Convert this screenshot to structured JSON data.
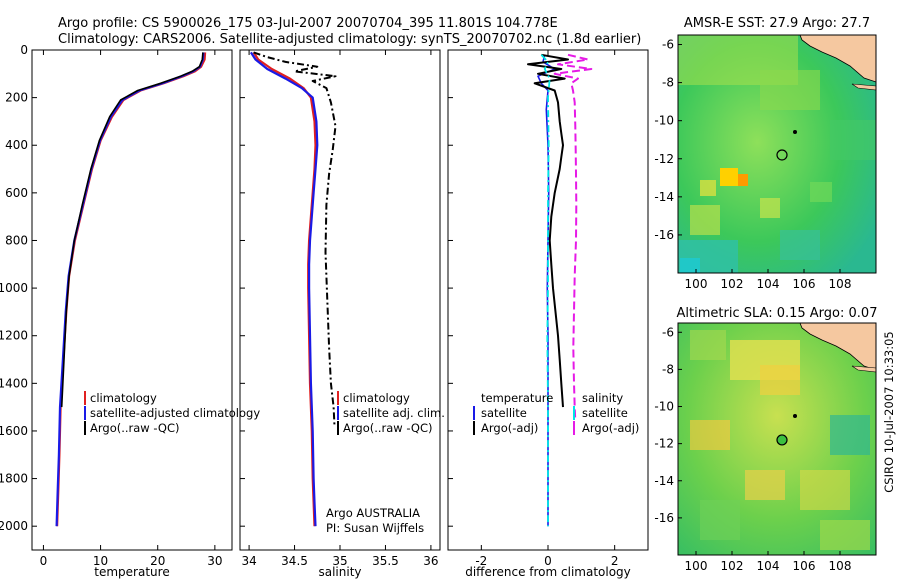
{
  "header": {
    "line1": "Argo profile: CS 5900026_175 03-Jul-2007 20070704_395 11.801S 104.778E",
    "line2": "Climatology: CARS2006. Satellite-adjusted climatology: synTS_20070702.nc (1.8d earlier)"
  },
  "footer": {
    "argo_label": "Argo AUSTRALIA",
    "pi_label": "PI: Susan Wijffels",
    "credit": "CSIRO 10-Jul-2007 10:33:05"
  },
  "colors": {
    "climatology": "#e02020",
    "satellite": "#1a1ae6",
    "argo": "#000000",
    "salinity_sat": "#00e5e5",
    "salinity_argo": "#e61ae6",
    "map_land": "#f5c8a0"
  },
  "chart_data": [
    {
      "id": "temperature",
      "type": "line",
      "xlabel": "temperature",
      "ylabel": "",
      "xlim": [
        -2,
        33
      ],
      "ylim": [
        2100,
        0
      ],
      "xticks": [
        0,
        10,
        20,
        30
      ],
      "yticks": [
        0,
        200,
        400,
        600,
        800,
        1000,
        1200,
        1400,
        1600,
        1800,
        2000
      ],
      "legend": [
        "climatology",
        "satellite-adjusted climatology",
        "Argo(..raw -QC)"
      ],
      "series": [
        {
          "name": "climatology",
          "color": "climatology",
          "dash": "",
          "width": 2.2,
          "x": [
            28.3,
            28.2,
            27.6,
            26.5,
            24.5,
            21,
            17,
            14,
            12,
            10,
            8.5,
            7,
            5.5,
            4.5,
            4,
            3.5,
            3,
            2.8,
            2.6,
            2.4
          ],
          "y": [
            10,
            40,
            70,
            90,
            110,
            140,
            170,
            210,
            280,
            380,
            500,
            650,
            800,
            950,
            1100,
            1300,
            1500,
            1700,
            1850,
            2000
          ]
        },
        {
          "name": "satellite-adjusted climatology",
          "color": "satellite",
          "dash": "",
          "width": 2.2,
          "x": [
            28.0,
            27.9,
            27.4,
            26.2,
            24.2,
            20.8,
            16.8,
            13.8,
            11.8,
            9.9,
            8.4,
            6.9,
            5.4,
            4.4,
            3.9,
            3.4,
            2.9,
            2.7,
            2.5,
            2.3
          ],
          "y": [
            10,
            40,
            70,
            90,
            110,
            140,
            170,
            210,
            280,
            380,
            500,
            650,
            800,
            950,
            1100,
            1300,
            1500,
            1700,
            1850,
            2000
          ]
        },
        {
          "name": "Argo(..raw -QC)",
          "color": "argo",
          "dash": "",
          "width": 1.6,
          "x": [
            27.9,
            27.8,
            27.3,
            26.0,
            24.0,
            20.5,
            16.5,
            13.5,
            11.6,
            9.8,
            8.3,
            6.8,
            5.4,
            4.5,
            4.0,
            3.6,
            3.2
          ],
          "y": [
            10,
            40,
            70,
            90,
            110,
            140,
            170,
            210,
            280,
            380,
            500,
            650,
            800,
            950,
            1100,
            1300,
            1500
          ]
        }
      ]
    },
    {
      "id": "salinity",
      "type": "line",
      "xlabel": "salinity",
      "ylabel": "",
      "xlim": [
        33.9,
        36.1
      ],
      "ylim": [
        2100,
        0
      ],
      "xticks": [
        34,
        34.5,
        35,
        35.5,
        36
      ],
      "xticklabels": [
        "34",
        "34.5",
        "35",
        "35.5",
        "36"
      ],
      "legend": [
        "climatology",
        "satellite adj. clim.",
        "Argo(..raw -QC)"
      ],
      "series": [
        {
          "name": "climatology",
          "color": "climatology",
          "dash": "",
          "width": 2.2,
          "x": [
            34.05,
            34.1,
            34.25,
            34.45,
            34.6,
            34.68,
            34.72,
            34.73,
            34.72,
            34.7,
            34.68,
            34.66,
            34.65,
            34.65,
            34.66,
            34.67,
            34.69,
            34.7,
            34.71,
            34.72
          ],
          "y": [
            10,
            40,
            80,
            120,
            160,
            200,
            300,
            400,
            500,
            600,
            700,
            800,
            900,
            1000,
            1200,
            1400,
            1600,
            1800,
            1900,
            2000
          ]
        },
        {
          "name": "satellite adj. clim.",
          "color": "satellite",
          "dash": "",
          "width": 2.2,
          "x": [
            34.02,
            34.07,
            34.2,
            34.4,
            34.58,
            34.7,
            34.74,
            34.75,
            34.73,
            34.71,
            34.69,
            34.67,
            34.66,
            34.66,
            34.67,
            34.68,
            34.7,
            34.71,
            34.72,
            34.73
          ],
          "y": [
            10,
            40,
            80,
            120,
            160,
            200,
            300,
            400,
            500,
            600,
            700,
            800,
            900,
            1000,
            1200,
            1400,
            1600,
            1800,
            1900,
            2000
          ]
        },
        {
          "name": "Argo(..raw -QC)",
          "color": "argo",
          "dash": "7,3,2,3",
          "width": 2,
          "x": [
            34.05,
            34.2,
            34.4,
            34.75,
            34.5,
            34.95,
            34.7,
            34.85,
            34.9,
            34.95,
            34.92,
            34.88,
            34.85,
            34.84,
            34.86,
            34.88,
            34.9,
            34.93,
            34.94
          ],
          "y": [
            10,
            30,
            50,
            70,
            90,
            110,
            130,
            160,
            220,
            320,
            420,
            520,
            650,
            850,
            1050,
            1250,
            1400,
            1500,
            1580
          ]
        }
      ]
    },
    {
      "id": "difference",
      "type": "line",
      "xlabel": "difference from climatology",
      "ylabel": "",
      "xlim": [
        -3,
        3
      ],
      "ylim": [
        2100,
        0
      ],
      "xticks": [
        -2,
        0,
        2
      ],
      "legend_temperature_title": "temperature",
      "legend_salinity_title": "salinity",
      "legend_temperature": [
        "satellite",
        "Argo(-adj)"
      ],
      "legend_salinity": [
        "satellite",
        "Argo(-adj)"
      ],
      "series": [
        {
          "name": "satellite",
          "group": "temperature",
          "color": "satellite",
          "dash": "",
          "width": 1.6,
          "x": [
            -0.1,
            -0.15,
            0.2,
            -0.3,
            -0.2,
            0.0,
            -0.05,
            0.0,
            0.02,
            0.0,
            -0.02,
            0.0,
            0.0,
            0.0,
            0.0
          ],
          "y": [
            20,
            50,
            80,
            110,
            140,
            170,
            250,
            400,
            600,
            800,
            1000,
            1200,
            1500,
            1800,
            2000
          ]
        },
        {
          "name": "Argo(-adj)",
          "group": "temperature",
          "color": "argo",
          "dash": "",
          "width": 2,
          "x": [
            -0.2,
            0.6,
            -0.6,
            0.4,
            -0.3,
            0.5,
            -0.4,
            0.2,
            0.3,
            0.35,
            0.4,
            0.45,
            0.4,
            0.35,
            0.2,
            0.1,
            0.05,
            0.1,
            0.15,
            0.3,
            0.35,
            0.4,
            0.45
          ],
          "y": [
            20,
            40,
            60,
            80,
            100,
            120,
            140,
            170,
            220,
            300,
            350,
            400,
            450,
            500,
            600,
            700,
            800,
            900,
            1000,
            1200,
            1300,
            1400,
            1500
          ]
        },
        {
          "name": "satellite",
          "group": "salinity",
          "color": "salinity_sat",
          "dash": "7,3,2,3",
          "width": 1.8,
          "x": [
            -0.2,
            0.0,
            -0.1,
            0.05,
            0.0,
            0.02,
            0.0,
            0.0,
            0.0,
            -0.02,
            0.0,
            0.0,
            0.0
          ],
          "y": [
            20,
            50,
            80,
            120,
            200,
            400,
            600,
            800,
            1000,
            1200,
            1500,
            1800,
            2000
          ]
        },
        {
          "name": "Argo(-adj)",
          "group": "salinity",
          "color": "salinity_argo",
          "dash": "8,4",
          "width": 2,
          "x": [
            0.6,
            1.2,
            0.3,
            1.3,
            0.2,
            0.9,
            0.7,
            0.75,
            0.8,
            0.82,
            0.83,
            0.84,
            0.85,
            0.84,
            0.8,
            0.78,
            0.76,
            0.78,
            0.8,
            0.82
          ],
          "y": [
            20,
            40,
            60,
            80,
            100,
            120,
            140,
            170,
            220,
            320,
            420,
            520,
            650,
            800,
            950,
            1100,
            1250,
            1400,
            1500,
            1560
          ]
        }
      ]
    }
  ],
  "maps": [
    {
      "id": "sst_map",
      "title": "AMSR-E SST: 27.9 Argo: 27.7",
      "xticks": [
        "100",
        "102",
        "104",
        "106",
        "108"
      ],
      "yticks": [
        "-6",
        "-8",
        "-10",
        "-12",
        "-14",
        "-16"
      ],
      "xlim": [
        99,
        110
      ],
      "ylim": [
        -18,
        -5.5
      ],
      "marker_lon": 104.778,
      "marker_lat": -11.801
    },
    {
      "id": "sla_map",
      "title": "Altimetric SLA: 0.15 Argo: 0.07",
      "xticks": [
        "100",
        "102",
        "104",
        "106",
        "108"
      ],
      "yticks": [
        "-6",
        "-8",
        "-10",
        "-12",
        "-14",
        "-16"
      ],
      "xlim": [
        99,
        110
      ],
      "ylim": [
        -18,
        -5.5
      ],
      "marker_lon": 104.778,
      "marker_lat": -11.801
    }
  ]
}
